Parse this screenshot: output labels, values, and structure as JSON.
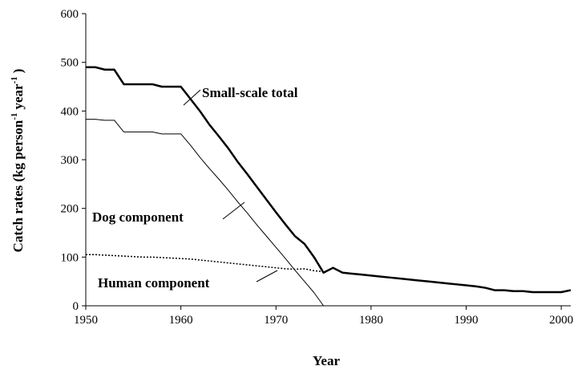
{
  "chart_data": {
    "type": "line",
    "ylabel": [
      "Catch rates (kg person",
      "-1",
      "year",
      "-1",
      ")"
    ],
    "xlabel": "Year",
    "x": [
      1950,
      1951,
      1952,
      1953,
      1954,
      1955,
      1956,
      1957,
      1958,
      1959,
      1960,
      1961,
      1962,
      1963,
      1964,
      1965,
      1966,
      1967,
      1968,
      1969,
      1970,
      1971,
      1972,
      1973,
      1974,
      1975,
      1976,
      1977,
      1978,
      1979,
      1980,
      1981,
      1982,
      1983,
      1984,
      1985,
      1986,
      1987,
      1988,
      1989,
      1990,
      1991,
      1992,
      1993,
      1994,
      1995,
      1996,
      1997,
      1998,
      1999,
      2000,
      2001
    ],
    "series": [
      {
        "name": "Small-scale total",
        "color": "#000000",
        "style": "solid",
        "width": 2.5,
        "values": [
          490,
          490,
          485,
          485,
          455,
          455,
          455,
          455,
          450,
          450,
          450,
          425,
          400,
          372,
          348,
          323,
          295,
          270,
          244,
          218,
          192,
          167,
          143,
          127,
          100,
          68,
          78,
          68,
          66,
          64,
          62,
          60,
          58,
          56,
          54,
          52,
          50,
          48,
          46,
          44,
          42,
          40,
          37,
          32,
          32,
          30,
          30,
          28,
          28,
          28,
          28,
          32
        ]
      },
      {
        "name": "Dog component",
        "color": "#000000",
        "style": "solid",
        "width": 1,
        "values": [
          383,
          383,
          381,
          381,
          357,
          357,
          357,
          357,
          353,
          353,
          353,
          330,
          305,
          282,
          260,
          237,
          213,
          190,
          166,
          143,
          120,
          97,
          73,
          50,
          27,
          0,
          null,
          null,
          null,
          null,
          null,
          null,
          null,
          null,
          null,
          null,
          null,
          null,
          null,
          null,
          null,
          null,
          null,
          null,
          null,
          null,
          null,
          null,
          null,
          null,
          null,
          null
        ]
      },
      {
        "name": "Human component",
        "color": "#000000",
        "style": "dotted",
        "width": 1.5,
        "values": [
          105,
          105,
          104,
          103,
          102,
          101,
          100,
          100,
          99,
          98,
          97,
          96,
          94,
          92,
          90,
          88,
          86,
          84,
          82,
          80,
          78,
          76,
          75,
          76,
          72,
          70,
          null,
          null,
          null,
          null,
          null,
          null,
          null,
          null,
          null,
          null,
          null,
          null,
          null,
          null,
          null,
          null,
          null,
          null,
          null,
          null,
          null,
          null,
          null,
          null,
          null,
          null
        ]
      }
    ],
    "xlim": [
      1950,
      2001
    ],
    "xticks": [
      1950,
      1960,
      1970,
      1980,
      1990,
      2000
    ],
    "ylim": [
      0,
      600
    ],
    "yticks": [
      0,
      100,
      200,
      300,
      400,
      500,
      600
    ],
    "grid": false,
    "legend": "annotations"
  }
}
